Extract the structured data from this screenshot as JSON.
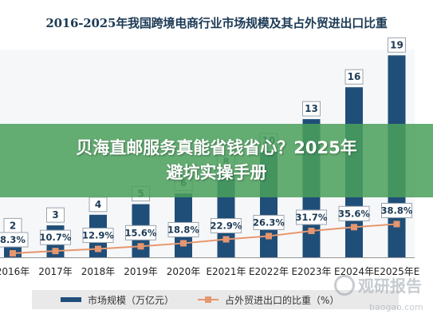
{
  "chart_data": {
    "type": "bar+line",
    "title": "2016-2025年我国跨境电商行业市场规模及其占外贸进出口比重",
    "categories": [
      "2016年",
      "2017年",
      "2018年",
      "2019年",
      "2020年",
      "E2021年",
      "E2022年",
      "E2023年",
      "E2024年",
      "E2025年E"
    ],
    "series": [
      {
        "name": "市场规模（万亿元）",
        "type": "bar",
        "color": "#1f4e79",
        "values": [
          2,
          3,
          4,
          5,
          6,
          8,
          10,
          13,
          16,
          19
        ],
        "labels": [
          "2",
          "3",
          "4",
          "5",
          "6",
          "8",
          "10",
          "13",
          "16",
          "19"
        ]
      },
      {
        "name": "占外贸进出口的比重（%）",
        "type": "line",
        "color": "#e6966e",
        "values": [
          8.3,
          10.7,
          12.9,
          15.6,
          18.8,
          22.9,
          26.3,
          31.7,
          35.6,
          38.8
        ],
        "labels": [
          "8.3%",
          "10.7%",
          "12.9%",
          "15.6%",
          "18.8%",
          "22.9%",
          "26.3%",
          "31.7%",
          "35.6%",
          "38.8%"
        ]
      }
    ],
    "legend_position": "bottom"
  },
  "banner": {
    "text": "贝海直邮服务真能省钱省心？2025年避坑实操手册"
  },
  "watermark": {
    "name": "观研报告",
    "url": "baogao.com"
  }
}
